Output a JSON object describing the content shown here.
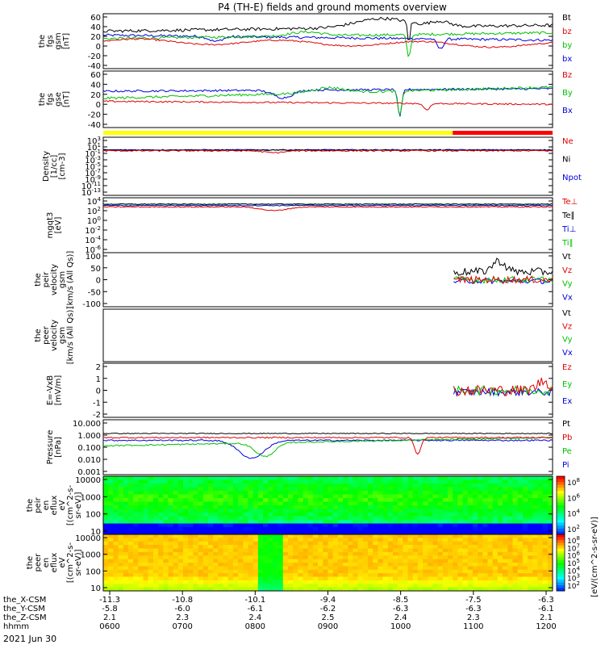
{
  "title": "P4 (TH-E) fields and ground moments overview",
  "date": "2021 Jun 30",
  "x_axis": {
    "time_labels": [
      "0600",
      "0700",
      "0800",
      "0900",
      "1000",
      "1100",
      "1200"
    ],
    "rows": [
      {
        "name": "the_X-CSM",
        "values": [
          "-11.3",
          "-10.8",
          "-10.1",
          "-9.4",
          "-8.5",
          "-7.5",
          "-6.3"
        ]
      },
      {
        "name": "the_Y-CSM",
        "values": [
          "-5.8",
          "-6.0",
          "-6.1",
          "-6.2",
          "-6.3",
          "-6.3",
          "-6.1"
        ]
      },
      {
        "name": "the_Z-CSM",
        "values": [
          "2.1",
          "2.3",
          "2.4",
          "2.5",
          "2.4",
          "2.3",
          "2.1"
        ]
      },
      {
        "name": "hhmm",
        "values": []
      }
    ]
  },
  "mode_bar": {
    "colors": [
      "#ffff00",
      "#ff0000"
    ],
    "switch_time": "10:40"
  },
  "colorbar_label": "[eV/(cm^2-s-sr-eV)]",
  "chart_data": [
    {
      "id": "fgs_gsm",
      "type": "line",
      "ylabel": [
        "the",
        "fgs",
        "gsm",
        "[nT]"
      ],
      "yticks": [
        60,
        40,
        20,
        0,
        -20,
        -40
      ],
      "ylim": [
        -45,
        65
      ],
      "legend": [
        {
          "label": "Bt",
          "color": "#000000"
        },
        {
          "label": "bz",
          "color": "#e00000"
        },
        {
          "label": "by",
          "color": "#00c000"
        },
        {
          "label": "bx",
          "color": "#0000e0"
        }
      ]
    },
    {
      "id": "fgs_gse",
      "type": "line",
      "ylabel": [
        "the",
        "fgs",
        "gse",
        "[nT]"
      ],
      "yticks": [
        60,
        40,
        20,
        0,
        -20,
        -40
      ],
      "ylim": [
        -50,
        62
      ],
      "legend": [
        {
          "label": "Bz",
          "color": "#e00000"
        },
        {
          "label": "By",
          "color": "#00c000"
        },
        {
          "label": "Bx",
          "color": "#0000e0"
        }
      ]
    },
    {
      "id": "density",
      "type": "line",
      "ylabel": [
        "Density",
        "[1/cc]",
        "[cm-3]"
      ],
      "yticks": [
        "10^3",
        "10^1",
        "10^-1",
        "10^-3",
        "10^-5",
        "10^-7",
        "10^-9",
        "10^-11",
        "10^-13"
      ],
      "ylim": [
        -14,
        4
      ],
      "yscale": "log",
      "legend": [
        {
          "label": "Ne",
          "color": "#e00000"
        },
        {
          "label": "Ni",
          "color": "#000000"
        },
        {
          "label": "Npot",
          "color": "#0000e0"
        }
      ]
    },
    {
      "id": "temperature",
      "type": "line",
      "ylabel": [
        "mgqt3",
        "[eV]"
      ],
      "yticks": [
        "10^4",
        "10^2",
        "10^0",
        "10^-2",
        "10^-4",
        "10^-6"
      ],
      "ylim": [
        -7,
        5
      ],
      "yscale": "log",
      "legend": [
        {
          "label": "Te⊥",
          "color": "#e00000"
        },
        {
          "label": "Te∥",
          "color": "#000000"
        },
        {
          "label": "Ti⊥",
          "color": "#0000e0"
        },
        {
          "label": "Ti∥",
          "color": "#00c000"
        }
      ]
    },
    {
      "id": "peir_velocity",
      "type": "line",
      "ylabel": [
        "the",
        "peir",
        "velocity",
        "gsm",
        "[km/s (All Qs)]"
      ],
      "yticks": [
        100,
        50,
        0,
        -50,
        -100
      ],
      "ylim": [
        -100,
        100
      ],
      "legend": [
        {
          "label": "Vt",
          "color": "#000000"
        },
        {
          "label": "Vz",
          "color": "#e00000"
        },
        {
          "label": "Vy",
          "color": "#00c000"
        },
        {
          "label": "Vx",
          "color": "#0000e0"
        }
      ]
    },
    {
      "id": "peer_velocity",
      "type": "line",
      "ylabel": [
        "the",
        "peer",
        "velocity",
        "gsm",
        "[km/s (All Qs)]"
      ],
      "yticks": [],
      "ylim": [
        -100,
        100
      ],
      "legend": [
        {
          "label": "Vt",
          "color": "#000000"
        },
        {
          "label": "Vz",
          "color": "#e00000"
        },
        {
          "label": "Vy",
          "color": "#00c000"
        },
        {
          "label": "Vx",
          "color": "#0000e0"
        }
      ]
    },
    {
      "id": "efield",
      "type": "line",
      "ylabel": [
        "E=-VxB",
        "[mV/m]"
      ],
      "yticks": [
        2,
        1,
        0,
        -1,
        -2
      ],
      "ylim": [
        -3,
        3
      ],
      "legend": [
        {
          "label": "Ez",
          "color": "#e00000"
        },
        {
          "label": "Ey",
          "color": "#00c000"
        },
        {
          "label": "Ex",
          "color": "#0000e0"
        }
      ]
    },
    {
      "id": "pressure",
      "type": "line",
      "ylabel": [
        "Pressure",
        "[nPa]"
      ],
      "yticks": [
        "10.000",
        "1.000",
        "0.100",
        "0.010",
        "0.001"
      ],
      "ylim": [
        -3,
        1
      ],
      "yscale": "log",
      "legend": [
        {
          "label": "Pt",
          "color": "#000000"
        },
        {
          "label": "Pb",
          "color": "#e00000"
        },
        {
          "label": "Pe",
          "color": "#00c000"
        },
        {
          "label": "Pi",
          "color": "#0000e0"
        }
      ]
    },
    {
      "id": "peir_eflux",
      "type": "heatmap",
      "ylabel": [
        "the",
        "peir",
        "en",
        "eflux",
        "eV",
        "[(cm^2-s-",
        "sr-eV)]"
      ],
      "yticks": [
        "10000",
        "1000",
        "100",
        "10"
      ],
      "yscale": "log",
      "colorbar_ticks": [
        "10^8",
        "10^6",
        "10^4",
        "10^2"
      ]
    },
    {
      "id": "peer_eflux",
      "type": "heatmap",
      "ylabel": [
        "the",
        "peer",
        "en",
        "eflux",
        "eV",
        "[(cm^2-s-",
        "sr-eV)]"
      ],
      "yticks": [
        "10000",
        "1000",
        "100",
        "10"
      ],
      "yscale": "log",
      "colorbar_ticks": [
        "10^8",
        "10^7",
        "10^6",
        "10^5",
        "10^4",
        "10^3",
        "10^2"
      ]
    }
  ]
}
